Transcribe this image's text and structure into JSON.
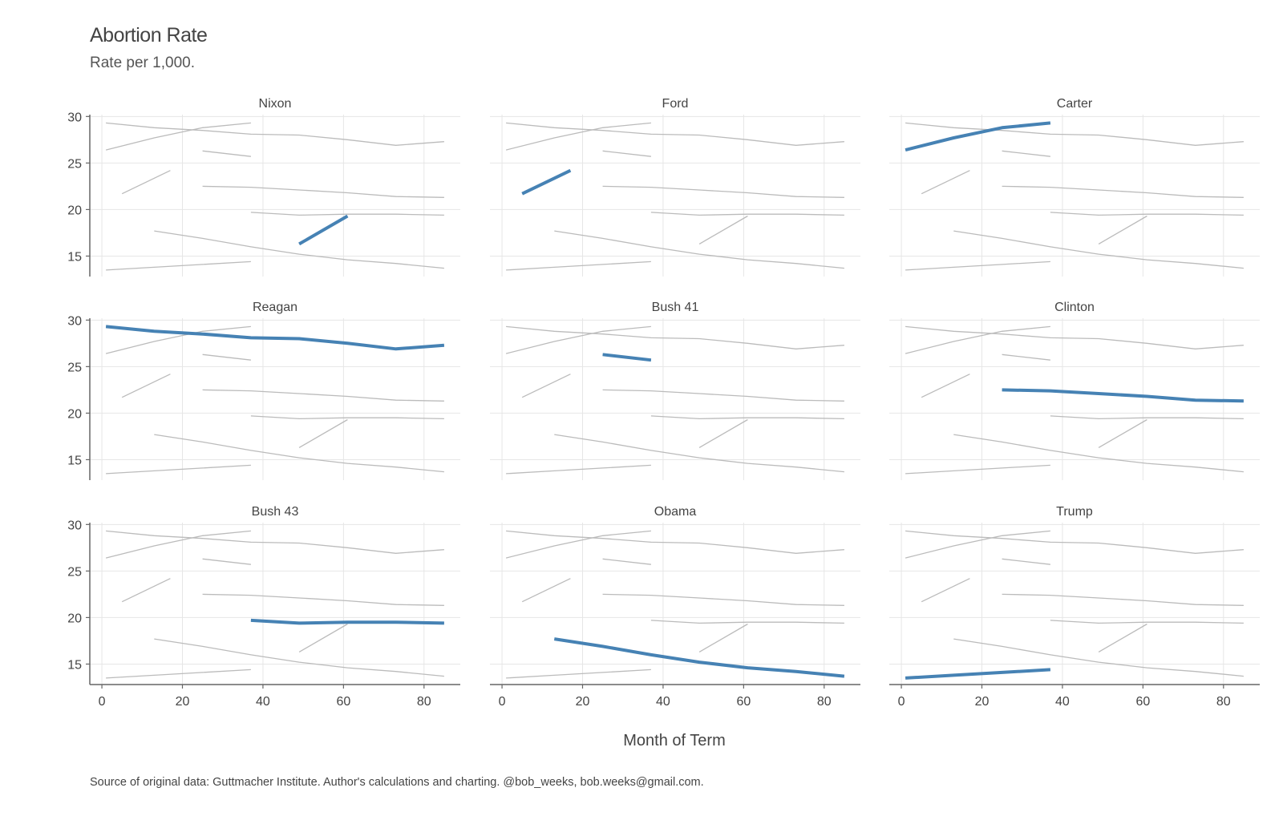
{
  "chart_data": {
    "type": "line",
    "title": "Abortion Rate",
    "subtitle": "Rate per 1,000.",
    "xlabel": "Month of Term",
    "ylabel": "",
    "source": "Source of original data: Guttmacher Institute. Author's calculations and charting. @bob_weeks, bob.weeks@gmail.com.",
    "xlim": [
      -3,
      89
    ],
    "ylim": [
      12.8,
      30.2
    ],
    "x_ticks": [
      "0",
      "20",
      "40",
      "60",
      "80"
    ],
    "y_ticks": [
      "15",
      "20",
      "25",
      "30"
    ],
    "x_tick_values": [
      0,
      20,
      40,
      60,
      80
    ],
    "y_tick_values": [
      15,
      20,
      25,
      30
    ],
    "grid": true,
    "highlight_color": "#4682b4",
    "context_color": "#bbbbbb",
    "panels": [
      "Nixon",
      "Ford",
      "Carter",
      "Reagan",
      "Bush 41",
      "Clinton",
      "Bush 43",
      "Obama",
      "Trump"
    ],
    "series": [
      {
        "name": "Nixon",
        "x": [
          49,
          61
        ],
        "y": [
          16.3,
          19.3
        ]
      },
      {
        "name": "Ford",
        "x": [
          5,
          17
        ],
        "y": [
          21.7,
          24.2
        ]
      },
      {
        "name": "Carter",
        "x": [
          1,
          13,
          25,
          37
        ],
        "y": [
          26.4,
          27.7,
          28.8,
          29.3
        ]
      },
      {
        "name": "Reagan",
        "x": [
          1,
          13,
          25,
          37,
          49,
          61,
          73,
          85
        ],
        "y": [
          29.3,
          28.8,
          28.5,
          28.1,
          28.0,
          27.5,
          26.9,
          27.3
        ]
      },
      {
        "name": "Bush 41",
        "x": [
          25,
          37
        ],
        "y": [
          26.3,
          25.7
        ]
      },
      {
        "name": "Clinton",
        "x": [
          25,
          37,
          49,
          61,
          73,
          85
        ],
        "y": [
          22.5,
          22.4,
          22.1,
          21.8,
          21.4,
          21.3
        ]
      },
      {
        "name": "Bush 43",
        "x": [
          37,
          49,
          61,
          73,
          85
        ],
        "y": [
          19.7,
          19.4,
          19.5,
          19.5,
          19.4
        ]
      },
      {
        "name": "Obama",
        "x": [
          13,
          25,
          37,
          49,
          61,
          73,
          85
        ],
        "y": [
          17.7,
          16.9,
          16.0,
          15.2,
          14.6,
          14.2,
          13.7
        ]
      },
      {
        "name": "Trump",
        "x": [
          1,
          13,
          25,
          37
        ],
        "y": [
          13.5,
          13.8,
          14.1,
          14.4
        ]
      }
    ]
  }
}
